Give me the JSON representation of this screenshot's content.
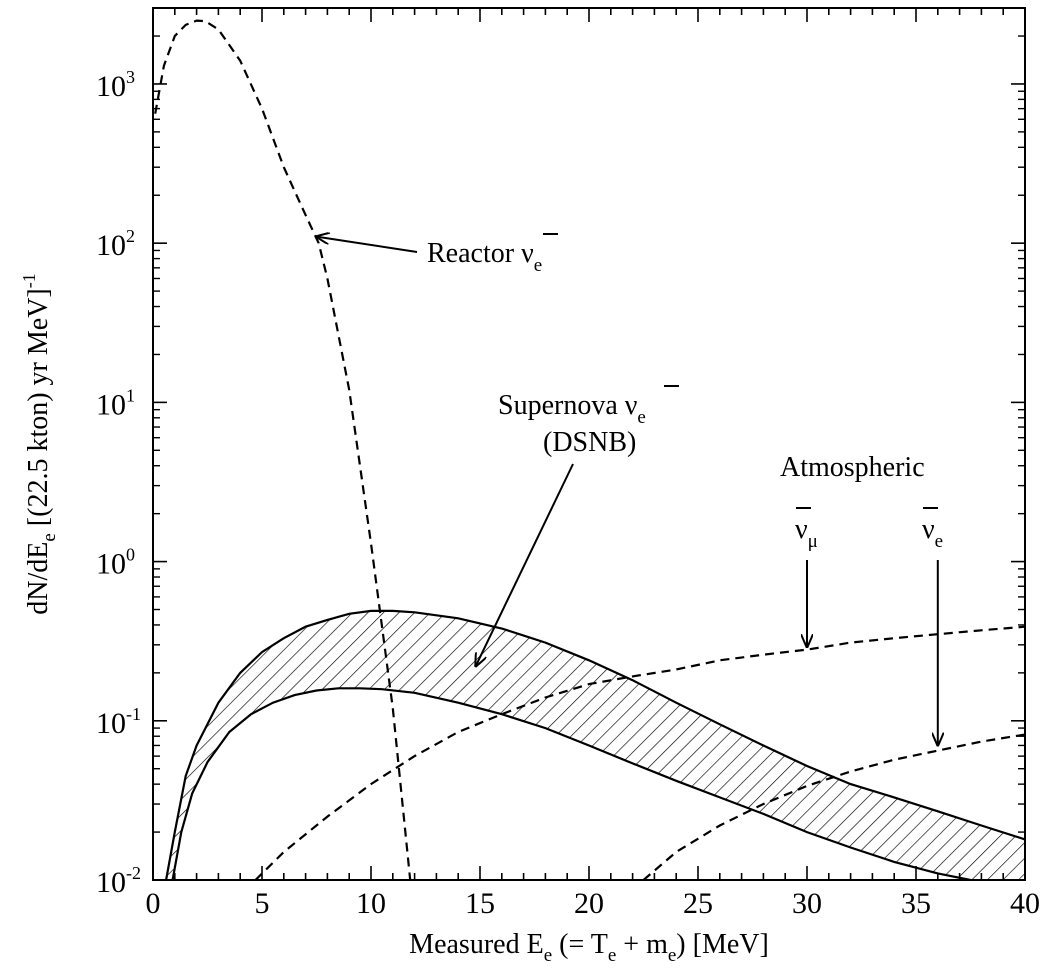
{
  "chart_data": {
    "type": "line",
    "title": "",
    "xlabel": "Measured E",
    "xlabel_sub1": "e",
    "xlabel_mid": " (= T",
    "xlabel_sub2": "e",
    "xlabel_mid2": " + m",
    "xlabel_sub3": "e",
    "xlabel_tail": ") [MeV]",
    "ylabel": "dN/dE",
    "ylabel_sub": "e",
    "ylabel_tail": "  [(22.5 kton) yr MeV]",
    "ylabel_sup": "-1",
    "xlim": [
      0,
      40
    ],
    "ylim": [
      0.01,
      3000
    ],
    "yscale": "log",
    "xticks": [
      "0",
      "5",
      "10",
      "15",
      "20",
      "25",
      "30",
      "35",
      "40"
    ],
    "yticks": [
      {
        "base": "10",
        "exp": "-2"
      },
      {
        "base": "10",
        "exp": "-1"
      },
      {
        "base": "10",
        "exp": "0"
      },
      {
        "base": "10",
        "exp": "1"
      },
      {
        "base": "10",
        "exp": "2"
      },
      {
        "base": "10",
        "exp": "3"
      }
    ],
    "series": [
      {
        "name": "Reactor ν̄e",
        "style": "dashed",
        "x": [
          0.1,
          0.5,
          1.0,
          1.5,
          2.0,
          2.4,
          3.0,
          4.0,
          5.0,
          6.0,
          7.0,
          7.6,
          8.0,
          9.0,
          10.0,
          11.0,
          11.8
        ],
        "y": [
          650,
          1300,
          2000,
          2350,
          2500,
          2480,
          2200,
          1400,
          700,
          300,
          150,
          100,
          60,
          12,
          1.3,
          0.12,
          0.01
        ]
      },
      {
        "name": "Supernova ν̄e (DSNB) upper",
        "style": "solid",
        "x": [
          0.6,
          1.0,
          1.5,
          2,
          3,
          4,
          5,
          6,
          7,
          8,
          9,
          10,
          11,
          12,
          14,
          16,
          18,
          20,
          22,
          24,
          26,
          28,
          30,
          32,
          34,
          36,
          38,
          40
        ],
        "y": [
          0.01,
          0.02,
          0.045,
          0.07,
          0.13,
          0.2,
          0.27,
          0.33,
          0.39,
          0.43,
          0.47,
          0.49,
          0.49,
          0.48,
          0.44,
          0.38,
          0.31,
          0.24,
          0.18,
          0.13,
          0.095,
          0.07,
          0.052,
          0.04,
          0.033,
          0.027,
          0.022,
          0.018
        ]
      },
      {
        "name": "Supernova ν̄e (DSNB) lower",
        "style": "solid",
        "x": [
          0.9,
          1.3,
          1.8,
          2.5,
          3.5,
          4.5,
          5.5,
          6.5,
          7.5,
          8.5,
          9.5,
          10.5,
          12,
          14,
          16,
          18,
          20,
          22,
          24,
          26,
          28,
          30,
          32,
          34,
          36,
          37.5
        ],
        "y": [
          0.01,
          0.02,
          0.035,
          0.055,
          0.085,
          0.11,
          0.13,
          0.145,
          0.155,
          0.16,
          0.16,
          0.158,
          0.15,
          0.13,
          0.11,
          0.09,
          0.07,
          0.054,
          0.042,
          0.033,
          0.026,
          0.02,
          0.016,
          0.013,
          0.011,
          0.01
        ]
      },
      {
        "name": "Atmospheric ν̄μ",
        "style": "dashed",
        "x": [
          4.7,
          6,
          8,
          10,
          12,
          14,
          16,
          18,
          20,
          22,
          24,
          26,
          28,
          30,
          32,
          34,
          36,
          38,
          40
        ],
        "y": [
          0.01,
          0.015,
          0.025,
          0.04,
          0.06,
          0.085,
          0.11,
          0.14,
          0.17,
          0.19,
          0.21,
          0.24,
          0.26,
          0.28,
          0.31,
          0.33,
          0.35,
          0.37,
          0.39
        ]
      },
      {
        "name": "Atmospheric ν̄e",
        "style": "dashed",
        "x": [
          22.5,
          24,
          26,
          28,
          30,
          32,
          34,
          36,
          38,
          40
        ],
        "y": [
          0.01,
          0.015,
          0.022,
          0.03,
          0.039,
          0.048,
          0.057,
          0.065,
          0.074,
          0.082
        ]
      }
    ],
    "annotations": [
      {
        "text": "Reactor ν",
        "sub": "e",
        "bar": true
      },
      {
        "text": "Supernova ν",
        "sub": "e",
        "bar": true
      },
      {
        "text": "(DSNB)"
      },
      {
        "text": "Atmospheric"
      },
      {
        "text": "ν",
        "sub": "μ",
        "bar": true
      },
      {
        "text": "ν",
        "sub": "e",
        "bar": true
      }
    ],
    "arrow_targets": [
      {
        "label": "reactor",
        "x": 7.5,
        "y": 110
      },
      {
        "label": "dsnb",
        "x": 14.8,
        "y": 0.22
      },
      {
        "label": "atm-mu",
        "x": 30.0,
        "y": 0.29
      },
      {
        "label": "atm-e",
        "x": 36.0,
        "y": 0.07
      }
    ],
    "grid": false,
    "legend": "none"
  }
}
